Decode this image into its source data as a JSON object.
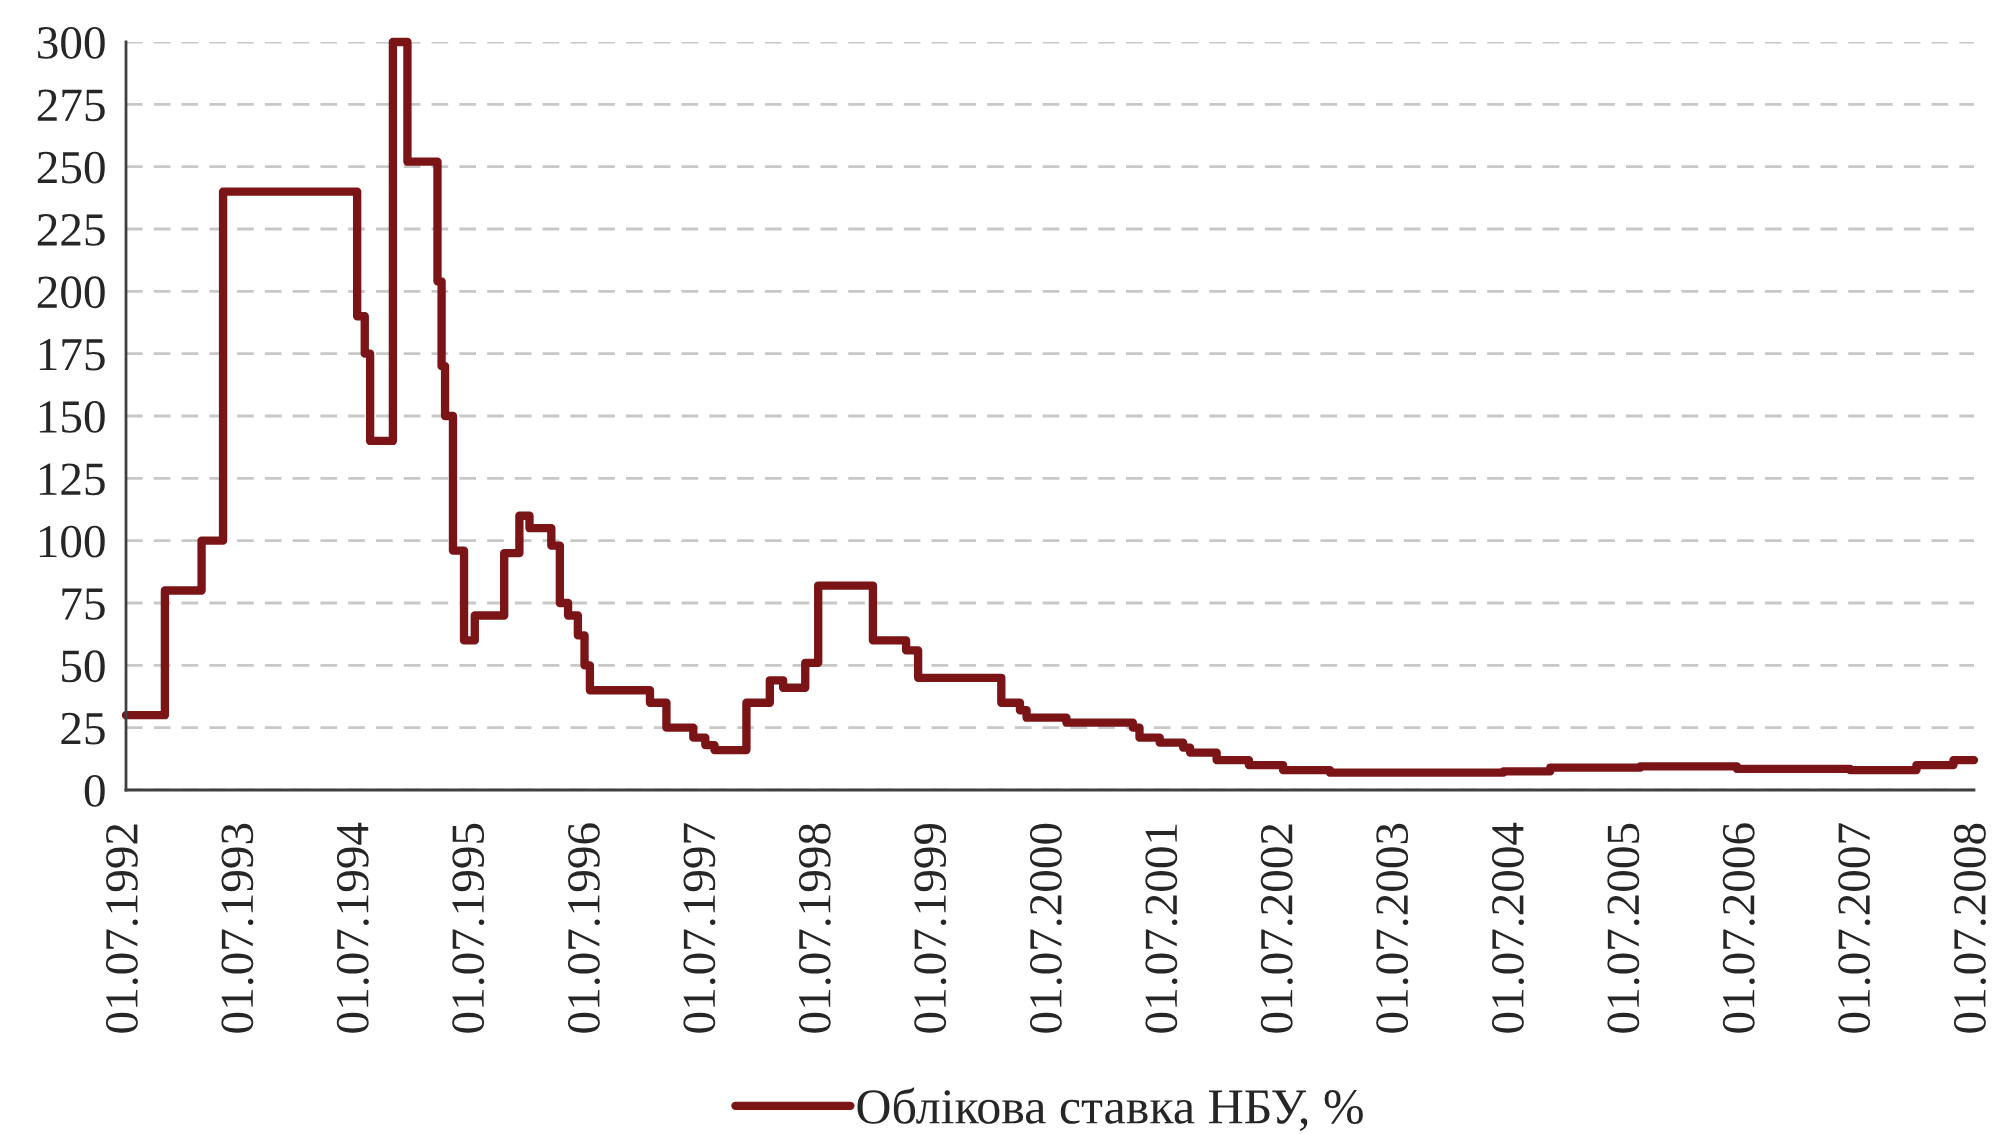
{
  "chart_data": {
    "type": "step",
    "x": [
      "1992-07-01",
      "1992-11-01",
      "1993-02-25",
      "1993-05-04",
      "1994-07-02",
      "1994-07-26",
      "1994-08-12",
      "1994-10-23",
      "1994-12-08",
      "1995-03-13",
      "1995-03-26",
      "1995-04-06",
      "1995-05-01",
      "1995-06-05",
      "1995-07-09",
      "1995-10-10",
      "1995-11-27",
      "1995-12-29",
      "1996-03-07",
      "1996-04-03",
      "1996-04-29",
      "1996-05-30",
      "1996-06-20",
      "1996-07-07",
      "1997-01-13",
      "1997-03-06",
      "1997-05-30",
      "1997-07-07",
      "1997-08-05",
      "1997-11-14",
      "1998-01-27",
      "1998-03-10",
      "1998-05-19",
      "1998-06-29",
      "1998-12-19",
      "1999-04-03",
      "1999-05-11",
      "2000-01-29",
      "2000-03-28",
      "2000-04-18",
      "2000-08-22",
      "2001-03-20",
      "2001-04-10",
      "2001-06-13",
      "2001-08-26",
      "2001-09-17",
      "2001-12-10",
      "2002-03-22",
      "2002-07-08",
      "2002-12-03",
      "2004-06-04",
      "2004-10-30",
      "2005-08-11",
      "2006-06-12",
      "2007-06-05",
      "2008-01-01",
      "2008-04-27",
      "2008-07-01"
    ],
    "series": [
      {
        "name": "Облікова ставка НБУ, %",
        "color": "#7b1416",
        "values": [
          30,
          80,
          100,
          240,
          190,
          175,
          140,
          300,
          252,
          204,
          170,
          150,
          96,
          60,
          70,
          95,
          110,
          105,
          98,
          75,
          70,
          62,
          50,
          40,
          35,
          25,
          21,
          18,
          16,
          35,
          44,
          41,
          51,
          82,
          60,
          56,
          45,
          35,
          32,
          29,
          27,
          25,
          21,
          19,
          17,
          15,
          12,
          10,
          8,
          7,
          7.5,
          9,
          9.5,
          8.5,
          8,
          10,
          12,
          12
        ]
      }
    ],
    "xlim": [
      "1992-07-01",
      "2008-07-01"
    ],
    "xticks": [
      {
        "value": "1992-07-01",
        "label": "01.07.1992"
      },
      {
        "value": "1993-07-01",
        "label": "01.07.1993"
      },
      {
        "value": "1994-07-01",
        "label": "01.07.1994"
      },
      {
        "value": "1995-07-01",
        "label": "01.07.1995"
      },
      {
        "value": "1996-07-01",
        "label": "01.07.1996"
      },
      {
        "value": "1997-07-01",
        "label": "01.07.1997"
      },
      {
        "value": "1998-07-01",
        "label": "01.07.1998"
      },
      {
        "value": "1999-07-01",
        "label": "01.07.1999"
      },
      {
        "value": "2000-07-01",
        "label": "01.07.2000"
      },
      {
        "value": "2001-07-01",
        "label": "01.07.2001"
      },
      {
        "value": "2002-07-01",
        "label": "01.07.2002"
      },
      {
        "value": "2003-07-01",
        "label": "01.07.2003"
      },
      {
        "value": "2004-07-01",
        "label": "01.07.2004"
      },
      {
        "value": "2005-07-01",
        "label": "01.07.2005"
      },
      {
        "value": "2006-07-01",
        "label": "01.07.2006"
      },
      {
        "value": "2007-07-01",
        "label": "01.07.2007"
      },
      {
        "value": "2008-07-01",
        "label": "01.07.2008"
      }
    ],
    "ylim": [
      0,
      300
    ],
    "yticks": [
      0,
      25,
      50,
      75,
      100,
      125,
      150,
      175,
      200,
      225,
      250,
      275,
      300
    ],
    "grid": "y",
    "legend": "bottom"
  }
}
